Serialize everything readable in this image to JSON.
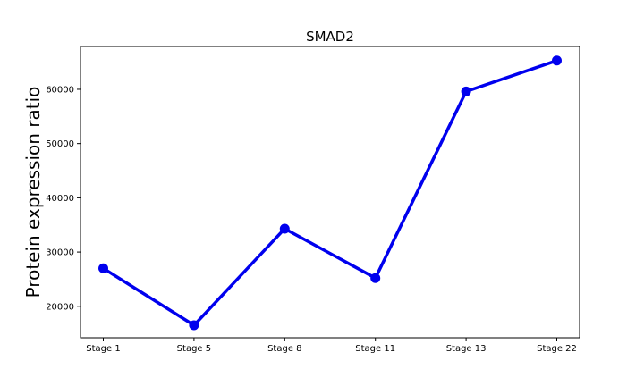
{
  "chart_data": {
    "type": "line",
    "title": "SMAD2",
    "xlabel": "",
    "ylabel": "Protein expression ratio",
    "categories": [
      "Stage 1",
      "Stage 5",
      "Stage 8",
      "Stage 11",
      "Stage 13",
      "Stage 22"
    ],
    "series": [
      {
        "values": [
          27000,
          16500,
          34300,
          25200,
          59600,
          65300
        ],
        "color": "#0000ee"
      }
    ],
    "ylim": [
      14200,
      67900
    ],
    "yticks": [
      20000,
      30000,
      40000,
      50000,
      60000
    ],
    "grid": false,
    "legend": false
  }
}
